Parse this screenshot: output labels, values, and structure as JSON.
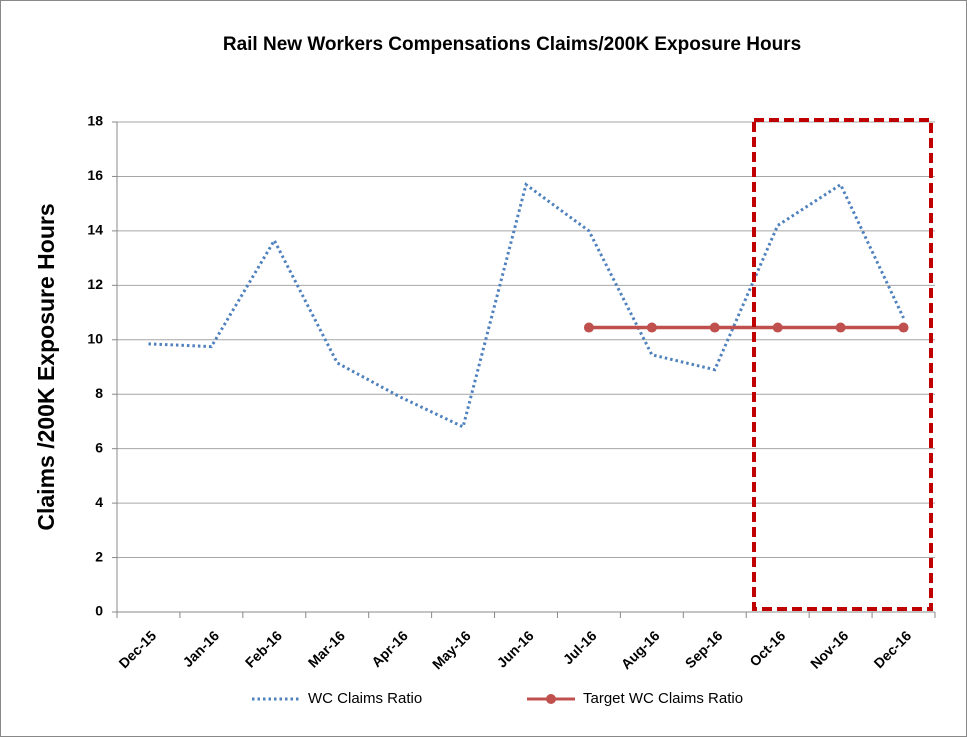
{
  "chart_data": {
    "type": "line",
    "title": "Rail New Workers Compensations Claims/200K Exposure Hours",
    "y_label": "Claims /200K Exposure Hours",
    "categories": [
      "Dec-15",
      "Jan-16",
      "Feb-16",
      "Mar-16",
      "Apr-16",
      "May-16",
      "Jun-16",
      "Jul-16",
      "Aug-16",
      "Sep-16",
      "Oct-16",
      "Nov-16",
      "Dec-16"
    ],
    "series": [
      {
        "name": "WC Claims Ratio",
        "color": "#4f81bd",
        "style": "dotted",
        "values": [
          9.85,
          9.75,
          13.65,
          9.15,
          7.9,
          6.8,
          15.7,
          14.0,
          9.45,
          8.9,
          14.2,
          15.7,
          10.8
        ]
      },
      {
        "name": "Target WC Claims Ratio",
        "color": "#c0504d",
        "style": "solid",
        "marker": "circle",
        "values": [
          null,
          null,
          null,
          null,
          null,
          null,
          null,
          10.45,
          10.45,
          10.45,
          10.45,
          10.45,
          10.45
        ]
      }
    ],
    "ylim": [
      0,
      18
    ],
    "yticks": [
      0,
      2,
      4,
      6,
      8,
      10,
      12,
      14,
      16,
      18
    ],
    "grid": true,
    "legend": "bottom"
  }
}
